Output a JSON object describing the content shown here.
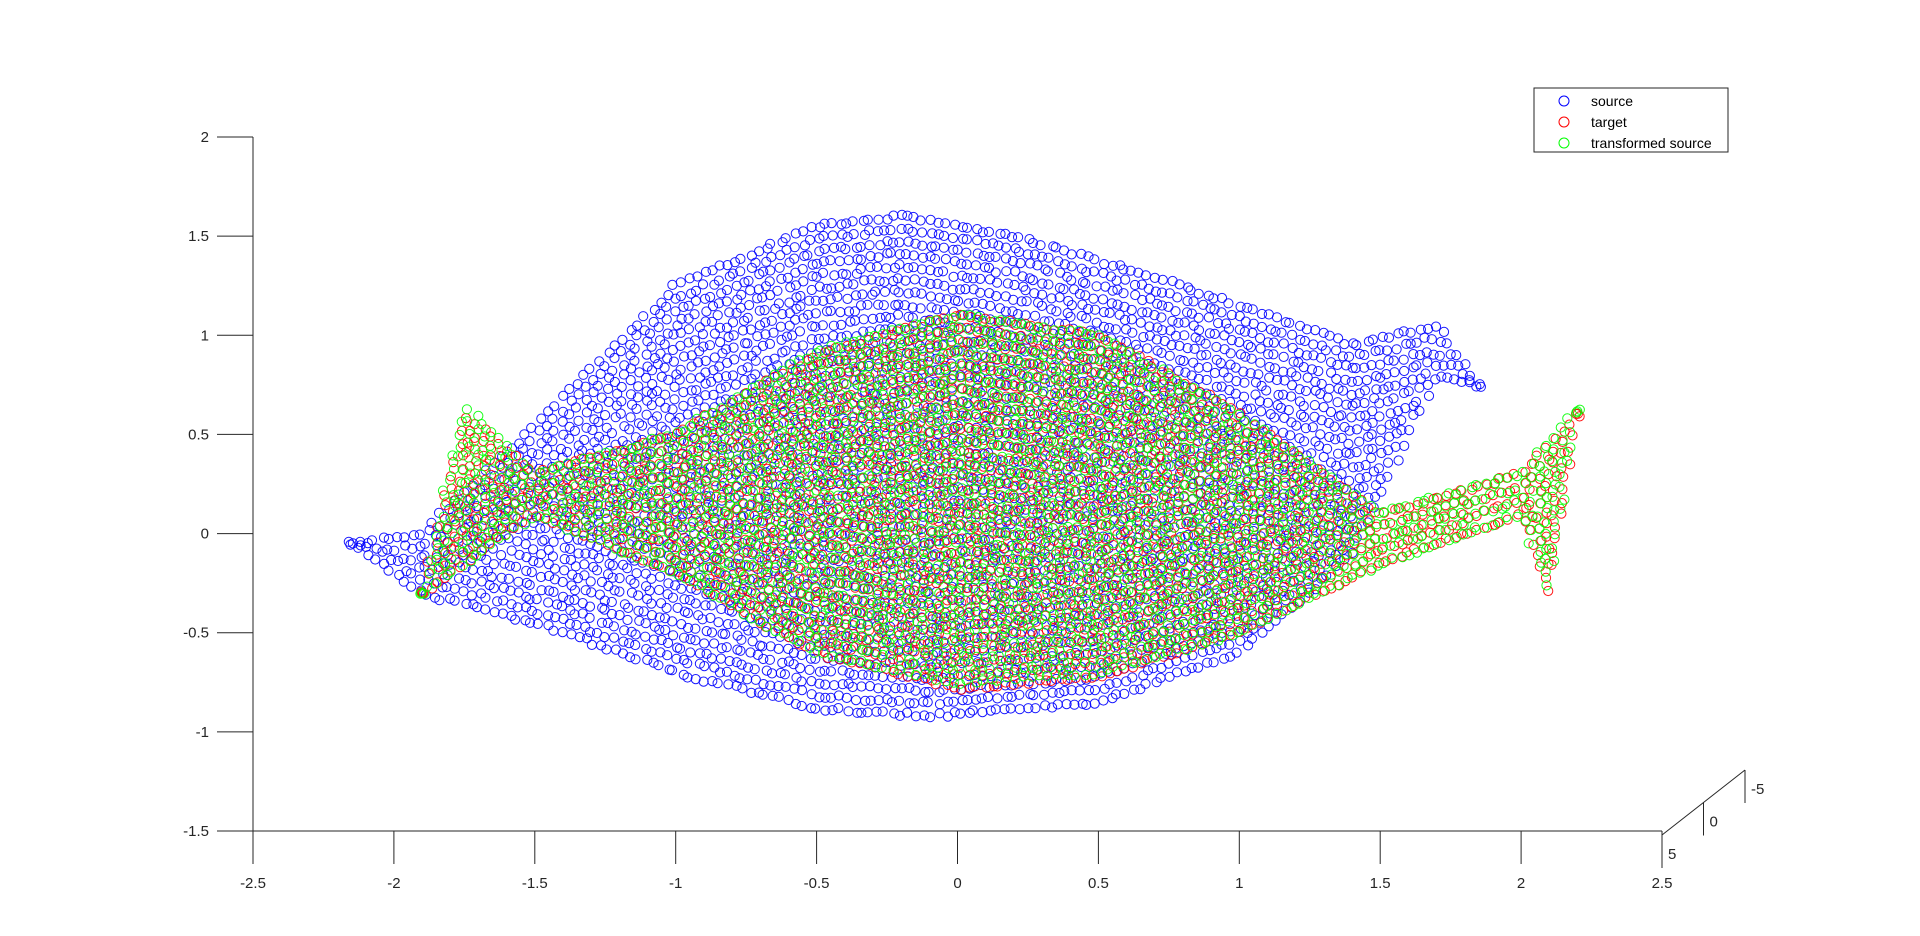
{
  "chart_data": {
    "type": "scatter",
    "title": "",
    "xlabel": "",
    "ylabel": "",
    "zlabel": "",
    "view": "3d",
    "marker": "open-circle",
    "xlim": [
      -2.5,
      2.5
    ],
    "ylim": [
      -1.5,
      2
    ],
    "zlim": [
      -5,
      5
    ],
    "x_ticks": [
      -2.5,
      -2,
      -1.5,
      -1,
      -0.5,
      0,
      0.5,
      1,
      1.5,
      2,
      2.5
    ],
    "x_tick_labels": [
      "-2.5",
      "-2",
      "-1.5",
      "-1",
      "-0.5",
      "0",
      "0.5",
      "1",
      "1.5",
      "2",
      "2.5"
    ],
    "y_ticks": [
      -1.5,
      -1,
      -0.5,
      0,
      0.5,
      1,
      1.5,
      2
    ],
    "y_tick_labels": [
      "-1.5",
      "-1",
      "-0.5",
      "0",
      "0.5",
      "1",
      "1.5",
      "2"
    ],
    "z_ticks": [
      5,
      0,
      -5
    ],
    "z_tick_labels": [
      "5",
      "0",
      "-5"
    ],
    "grid": false,
    "legend_position": "top-right",
    "series": [
      {
        "name": "source",
        "color": "#0000ff",
        "shape": "twisted-band",
        "x_range": [
          -2.15,
          1.85
        ],
        "outline_upper": [
          [
            -2.15,
            -0.05
          ],
          [
            -1.9,
            0.0
          ],
          [
            -1.5,
            0.55
          ],
          [
            -1.0,
            1.25
          ],
          [
            -0.5,
            1.55
          ],
          [
            -0.2,
            1.6
          ],
          [
            0.2,
            1.5
          ],
          [
            0.8,
            1.25
          ],
          [
            1.4,
            0.95
          ],
          [
            1.7,
            1.05
          ],
          [
            1.85,
            0.75
          ]
        ],
        "outline_lower": [
          [
            -2.15,
            -0.05
          ],
          [
            -1.9,
            -0.3
          ],
          [
            -1.5,
            -0.45
          ],
          [
            -1.0,
            -0.7
          ],
          [
            -0.5,
            -0.88
          ],
          [
            -0.1,
            -0.92
          ],
          [
            0.5,
            -0.85
          ],
          [
            1.0,
            -0.6
          ],
          [
            1.4,
            -0.1
          ],
          [
            1.7,
            0.8
          ],
          [
            1.85,
            0.75
          ]
        ],
        "crossing": [
          -1.75,
          -0.1
        ]
      },
      {
        "name": "target",
        "color": "#ff0000",
        "shape": "twisted-band",
        "x_range": [
          -1.9,
          2.2
        ],
        "outline_upper": [
          [
            -1.9,
            -0.3
          ],
          [
            -1.75,
            0.6
          ],
          [
            -1.5,
            0.3
          ],
          [
            -1.0,
            0.5
          ],
          [
            -0.5,
            0.9
          ],
          [
            0.0,
            1.1
          ],
          [
            0.5,
            1.0
          ],
          [
            1.0,
            0.6
          ],
          [
            1.5,
            0.1
          ],
          [
            2.0,
            0.3
          ],
          [
            2.2,
            0.6
          ]
        ],
        "outline_lower": [
          [
            -1.9,
            -0.3
          ],
          [
            -1.5,
            0.1
          ],
          [
            -1.0,
            -0.2
          ],
          [
            -0.5,
            -0.6
          ],
          [
            0.0,
            -0.78
          ],
          [
            0.5,
            -0.72
          ],
          [
            1.0,
            -0.5
          ],
          [
            1.5,
            -0.15
          ],
          [
            2.0,
            0.1
          ],
          [
            2.1,
            -0.32
          ],
          [
            2.2,
            0.6
          ]
        ],
        "crossing": [
          1.65,
          0.1
        ]
      },
      {
        "name": "transformed source",
        "color": "#00ff00",
        "shape": "twisted-band",
        "x_range": [
          -1.9,
          2.2
        ],
        "outline_upper": [
          [
            -1.9,
            -0.3
          ],
          [
            -1.75,
            0.65
          ],
          [
            -1.5,
            0.3
          ],
          [
            -1.0,
            0.5
          ],
          [
            -0.5,
            0.92
          ],
          [
            0.0,
            1.1
          ],
          [
            0.5,
            1.0
          ],
          [
            1.0,
            0.6
          ],
          [
            1.5,
            0.1
          ],
          [
            2.0,
            0.3
          ],
          [
            2.2,
            0.62
          ]
        ],
        "outline_lower": [
          [
            -1.9,
            -0.3
          ],
          [
            -1.5,
            0.1
          ],
          [
            -1.0,
            -0.2
          ],
          [
            -0.5,
            -0.6
          ],
          [
            0.0,
            -0.75
          ],
          [
            0.5,
            -0.7
          ],
          [
            1.0,
            -0.5
          ],
          [
            1.5,
            -0.15
          ],
          [
            2.0,
            0.1
          ],
          [
            2.1,
            -0.3
          ],
          [
            2.2,
            0.62
          ]
        ],
        "crossing": [
          1.65,
          0.1
        ]
      }
    ]
  }
}
